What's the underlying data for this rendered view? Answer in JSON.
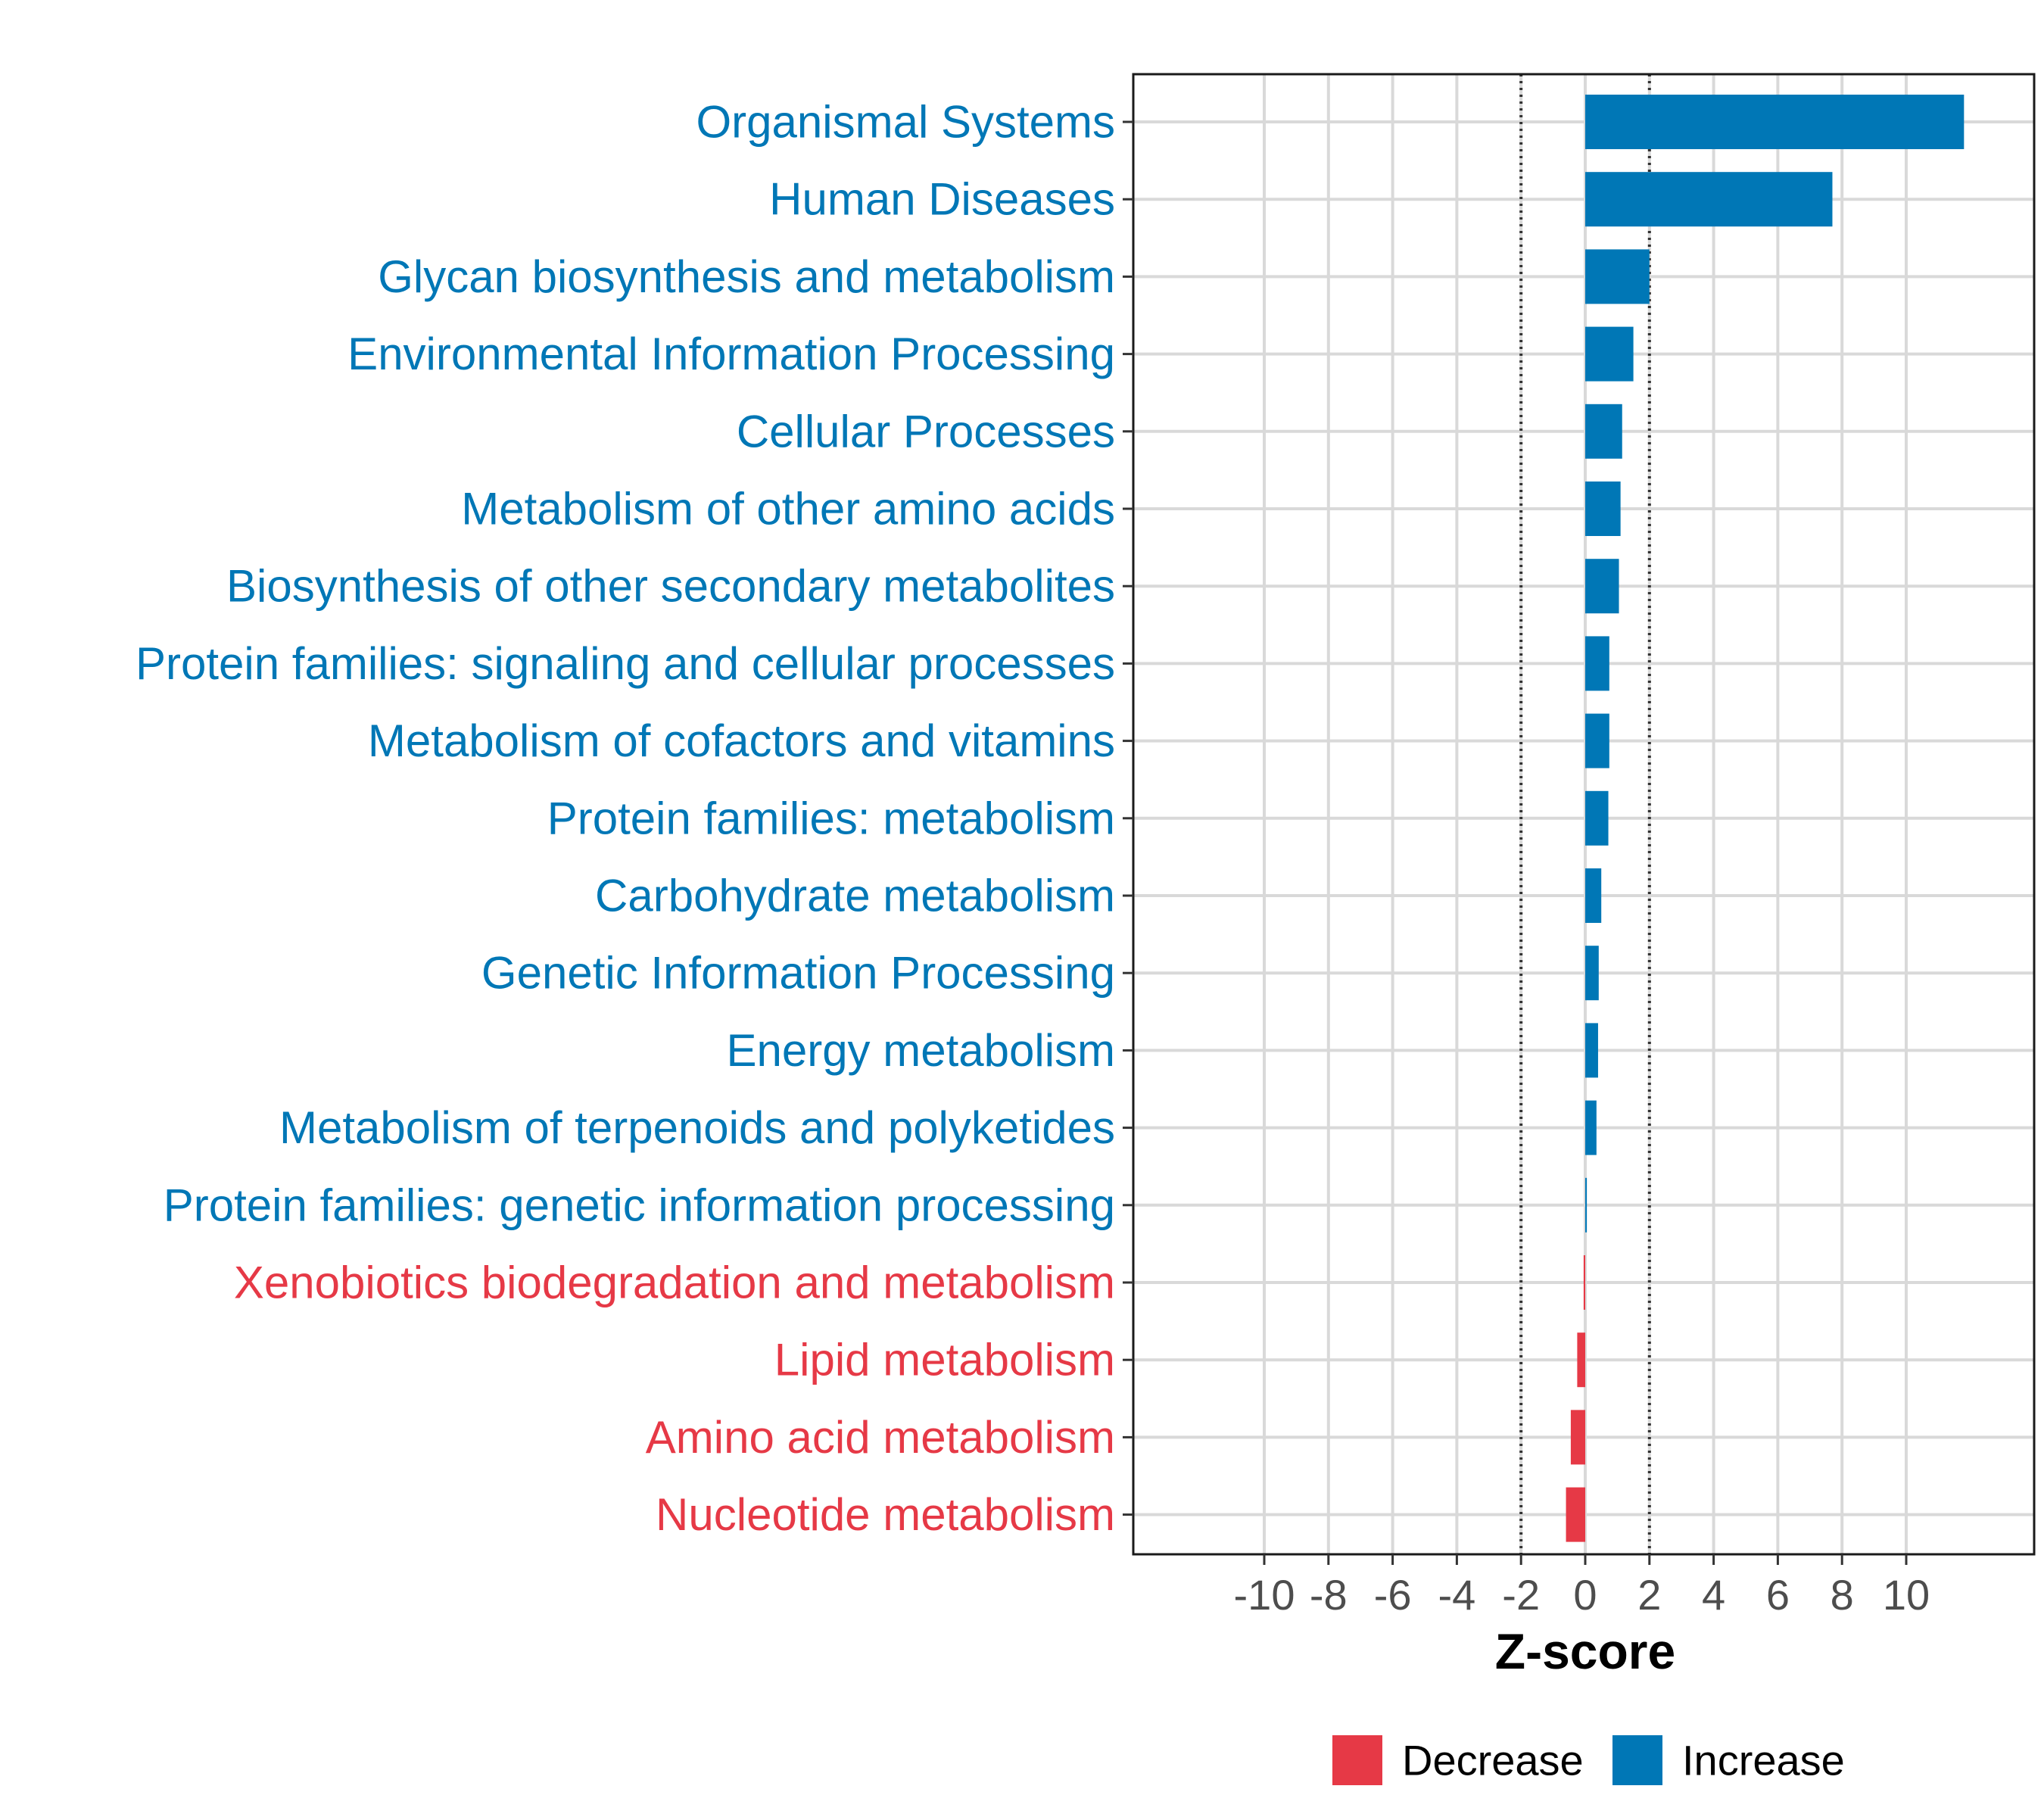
{
  "chart_data": {
    "type": "bar",
    "orientation": "horizontal",
    "title": "",
    "xlabel": "Z-score",
    "ylabel": "",
    "xlim": [
      -14,
      14
    ],
    "xticks": [
      -10,
      -8,
      -6,
      -4,
      -2,
      0,
      2,
      4,
      6,
      8,
      10
    ],
    "xtick_labels": [
      "-10",
      "-8",
      "-6",
      "-4",
      "-2",
      "0",
      "2",
      "4",
      "6",
      "8",
      "10"
    ],
    "reference_lines": [
      -2,
      2
    ],
    "grid": true,
    "categories": [
      "Organismal Systems",
      "Human Diseases",
      "Glycan biosynthesis and metabolism",
      "Environmental Information Processing",
      "Cellular Processes",
      "Metabolism of other amino acids",
      "Biosynthesis of other secondary metabolites",
      "Protein families: signaling and cellular processes",
      "Metabolism of cofactors and vitamins",
      "Protein families: metabolism",
      "Carbohydrate metabolism",
      "Genetic Information Processing",
      "Energy metabolism",
      "Metabolism of terpenoids and polyketides",
      "Protein families: genetic information processing",
      "Xenobiotics biodegradation and metabolism",
      "Lipid metabolism",
      "Amino acid metabolism",
      "Nucleotide metabolism"
    ],
    "values": [
      11.8,
      7.7,
      2.0,
      1.5,
      1.15,
      1.1,
      1.05,
      0.75,
      0.75,
      0.72,
      0.5,
      0.42,
      0.4,
      0.35,
      0.05,
      -0.05,
      -0.25,
      -0.45,
      -0.6
    ],
    "groups": [
      "Increase",
      "Increase",
      "Increase",
      "Increase",
      "Increase",
      "Increase",
      "Increase",
      "Increase",
      "Increase",
      "Increase",
      "Increase",
      "Increase",
      "Increase",
      "Increase",
      "Increase",
      "Decrease",
      "Decrease",
      "Decrease",
      "Decrease"
    ],
    "legend": {
      "position": "bottom",
      "entries": [
        {
          "label": "Decrease",
          "color": "#E63946"
        },
        {
          "label": "Increase",
          "color": "#0077B6"
        }
      ]
    }
  }
}
